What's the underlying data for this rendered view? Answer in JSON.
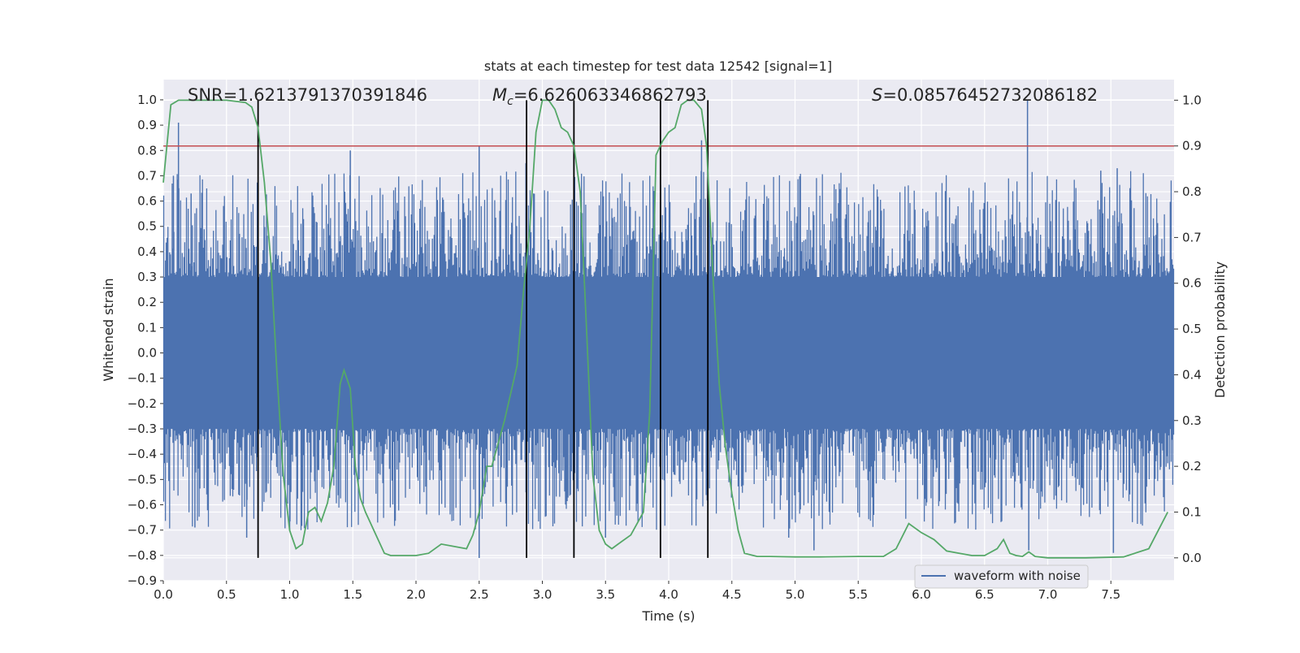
{
  "chart_data": {
    "type": "line",
    "title": "stats at each timestep for test data 12542 [signal=1]",
    "xlabel": "Time (s)",
    "ylabel_left": "Whitened strain",
    "ylabel_right": "Detection probability",
    "xlim": [
      0.0,
      8.0
    ],
    "ylim_left": [
      -0.9,
      1.08
    ],
    "ylim_right": [
      -0.05,
      1.045
    ],
    "x_ticks": [
      "0.0",
      "0.5",
      "1.0",
      "1.5",
      "2.0",
      "2.5",
      "3.0",
      "3.5",
      "4.0",
      "4.5",
      "5.0",
      "5.5",
      "6.0",
      "6.5",
      "7.0",
      "7.5"
    ],
    "y_ticks_left": [
      "1.0",
      "0.9",
      "0.8",
      "0.7",
      "0.6",
      "0.5",
      "0.4",
      "0.3",
      "0.2",
      "0.1",
      "0.0",
      "−0.1",
      "−0.2",
      "−0.3",
      "−0.4",
      "−0.5",
      "−0.6",
      "−0.7",
      "−0.8",
      "−0.9"
    ],
    "y_ticks_right": [
      "1.0",
      "0.9",
      "0.8",
      "0.7",
      "0.6",
      "0.5",
      "0.4",
      "0.3",
      "0.2",
      "0.1",
      "0.0"
    ],
    "grid": true,
    "legend": {
      "label": "waveform with noise",
      "placement": "lower-right"
    },
    "annotations": {
      "snr": "SNR=1.6213791370391846",
      "mc_symbol": "M",
      "mc_subscript": "c",
      "mc_value": "=6.626063346862793",
      "s_symbol": "S",
      "s_value": "=0.08576452732086182"
    },
    "threshold_right": 0.9,
    "vertical_markers_s": [
      0.75,
      2.875,
      3.25,
      3.935,
      4.31
    ],
    "waveform_envelope": {
      "base_abs_amplitude": 0.3,
      "upper_spikes": [
        [
          0.12,
          0.91
        ],
        [
          0.08,
          0.7
        ],
        [
          0.22,
          0.63
        ],
        [
          1.48,
          0.8
        ],
        [
          2.5,
          0.82
        ],
        [
          2.87,
          0.75
        ],
        [
          4.26,
          0.84
        ],
        [
          6.84,
          1.0
        ],
        [
          7.42,
          0.72
        ],
        [
          7.55,
          0.73
        ]
      ],
      "lower_spikes": [
        [
          0.25,
          -0.69
        ],
        [
          0.66,
          -0.73
        ],
        [
          0.75,
          -0.8
        ],
        [
          1.0,
          -0.7
        ],
        [
          2.5,
          -0.81
        ],
        [
          3.25,
          -0.8
        ],
        [
          3.5,
          -0.73
        ],
        [
          4.95,
          -0.73
        ],
        [
          5.15,
          -0.78
        ],
        [
          6.85,
          -0.78
        ],
        [
          7.52,
          -0.79
        ]
      ]
    },
    "series": [
      {
        "name": "detection probability",
        "axis": "right",
        "color": "#55a868",
        "x": [
          0.0,
          0.06,
          0.12,
          0.3,
          0.5,
          0.65,
          0.7,
          0.75,
          0.8,
          0.85,
          0.9,
          0.95,
          1.0,
          1.05,
          1.1,
          1.15,
          1.2,
          1.25,
          1.3,
          1.35,
          1.4,
          1.43,
          1.48,
          1.52,
          1.56,
          1.6,
          1.7,
          1.75,
          1.8,
          2.0,
          2.1,
          2.2,
          2.3,
          2.4,
          2.45,
          2.5,
          2.56,
          2.6,
          2.7,
          2.8,
          2.85,
          2.9,
          2.95,
          3.0,
          3.05,
          3.1,
          3.15,
          3.2,
          3.25,
          3.3,
          3.35,
          3.4,
          3.45,
          3.5,
          3.55,
          3.6,
          3.7,
          3.8,
          3.85,
          3.9,
          3.95,
          4.0,
          4.05,
          4.1,
          4.15,
          4.2,
          4.26,
          4.3,
          4.35,
          4.4,
          4.45,
          4.5,
          4.55,
          4.6,
          4.7,
          4.8,
          5.0,
          5.2,
          5.5,
          5.7,
          5.8,
          5.9,
          6.0,
          6.1,
          6.2,
          6.3,
          6.4,
          6.5,
          6.6,
          6.65,
          6.7,
          6.75,
          6.8,
          6.85,
          6.9,
          7.0,
          7.3,
          7.6,
          7.8,
          7.95
        ],
        "y": [
          0.82,
          0.99,
          1.0,
          1.0,
          1.0,
          0.995,
          0.985,
          0.94,
          0.82,
          0.65,
          0.4,
          0.18,
          0.06,
          0.02,
          0.03,
          0.1,
          0.11,
          0.08,
          0.12,
          0.2,
          0.38,
          0.41,
          0.37,
          0.2,
          0.13,
          0.1,
          0.04,
          0.01,
          0.005,
          0.005,
          0.01,
          0.03,
          0.025,
          0.02,
          0.05,
          0.1,
          0.2,
          0.2,
          0.3,
          0.42,
          0.58,
          0.72,
          0.93,
          1.0,
          1.0,
          0.98,
          0.94,
          0.93,
          0.9,
          0.8,
          0.5,
          0.18,
          0.06,
          0.03,
          0.02,
          0.03,
          0.05,
          0.1,
          0.32,
          0.88,
          0.91,
          0.93,
          0.94,
          0.99,
          1.0,
          1.0,
          0.98,
          0.9,
          0.62,
          0.38,
          0.24,
          0.14,
          0.06,
          0.01,
          0.003,
          0.003,
          0.002,
          0.002,
          0.003,
          0.003,
          0.02,
          0.075,
          0.055,
          0.04,
          0.015,
          0.01,
          0.005,
          0.005,
          0.02,
          0.04,
          0.01,
          0.005,
          0.003,
          0.013,
          0.003,
          0.0,
          0.0,
          0.002,
          0.02,
          0.1
        ]
      }
    ]
  }
}
